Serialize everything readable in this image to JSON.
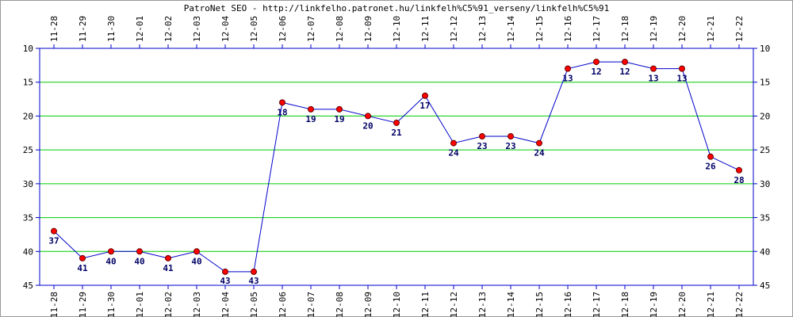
{
  "chart_data": {
    "type": "line",
    "title": "PatroNet SEO - http://linkfelho.patronet.hu/linkfelh%C5%91_verseny/linkfelh%C5%91",
    "categories": [
      "11-28",
      "11-29",
      "11-30",
      "12-01",
      "12-02",
      "12-03",
      "12-04",
      "12-05",
      "12-06",
      "12-07",
      "12-08",
      "12-09",
      "12-10",
      "12-11",
      "12-12",
      "12-13",
      "12-14",
      "12-15",
      "12-16",
      "12-17",
      "12-18",
      "12-19",
      "12-20",
      "12-21",
      "12-22"
    ],
    "values": [
      37,
      41,
      40,
      40,
      41,
      40,
      43,
      43,
      18,
      19,
      19,
      20,
      21,
      17,
      24,
      23,
      23,
      24,
      13,
      12,
      12,
      13,
      13,
      26,
      28
    ],
    "data_labels": [
      "37",
      "41",
      "40",
      "40",
      "41",
      "40",
      "43",
      "43",
      "18",
      "19",
      "19",
      "20",
      "21",
      "17",
      "24",
      "23",
      "23",
      "24",
      "13",
      "12",
      "12",
      "13",
      "13",
      "26",
      "28"
    ],
    "ylim": [
      10,
      45
    ],
    "y_inverted": true,
    "y_ticks": [
      "10",
      "15",
      "20",
      "25",
      "30",
      "35",
      "40",
      "45"
    ],
    "grid": true,
    "xlabel": "",
    "ylabel": "",
    "colors": {
      "line": "#0000cc",
      "marker_fill": "#ff0000",
      "marker_stroke": "#660000",
      "grid": "#00cc00",
      "axis": "#0000cc",
      "border": "#999999",
      "label": "#000066"
    }
  }
}
